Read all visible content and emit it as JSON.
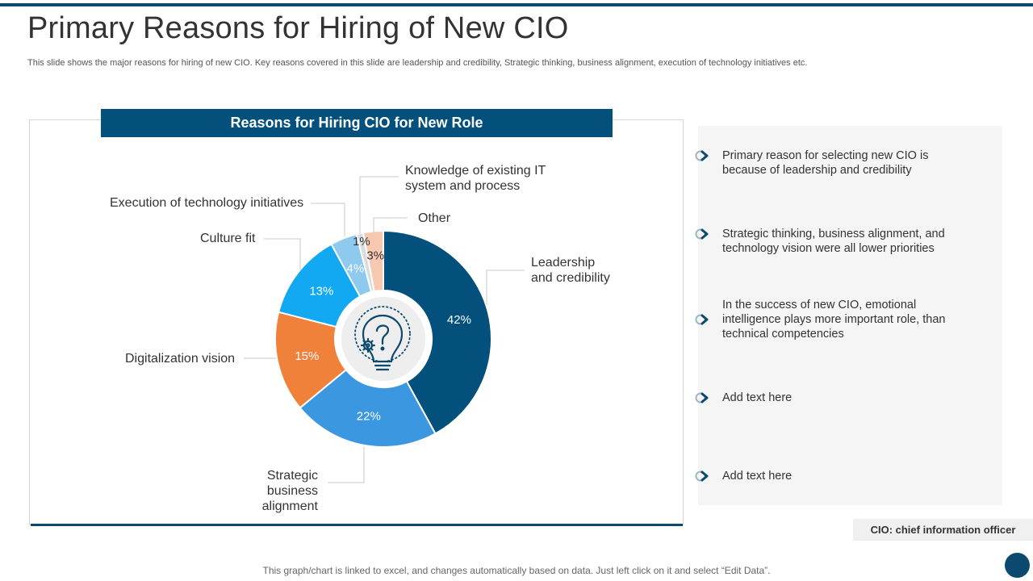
{
  "slide": {
    "title": "Primary Reasons for Hiring of New CIO",
    "subtitle": "This slide shows the major reasons for hiring of new CIO.  Key reasons covered in this slide are leadership and credibility, Strategic thinking, business alignment, execution of technology initiatives etc.",
    "footer_note": "This graph/chart is linked to excel,  and changes automatically based on data. Just left click on it and select “Edit Data”.",
    "abbreviation_note": "CIO: chief information officer"
  },
  "chart_header": "Reasons for Hiring CIO for New Role",
  "chart_data": {
    "type": "pie",
    "variant": "donut",
    "title": "Reasons for Hiring CIO for New Role",
    "center_icon": "lightbulb-question-gear-icon",
    "slices": [
      {
        "label": "Leadership\nand credibility",
        "value": 42,
        "value_label": "42%",
        "color": "#03507c"
      },
      {
        "label": "Strategic\nbusiness alignment",
        "value": 22,
        "value_label": "22%",
        "color": "#3a97e0"
      },
      {
        "label": "Digitalization vision",
        "value": 15,
        "value_label": "15%",
        "color": "#f0813b"
      },
      {
        "label": "Culture fit",
        "value": 13,
        "value_label": "13%",
        "color": "#12a8f2"
      },
      {
        "label": "Execution of technology  initiatives",
        "value": 4,
        "value_label": "4%",
        "color": "#8ec9ee"
      },
      {
        "label": "Knowledge of existing IT\nsystem and process",
        "value": 1,
        "value_label": "1%",
        "color": "#d9dde0"
      },
      {
        "label": "Other",
        "value": 3,
        "value_label": "3%",
        "color": "#f7c9b3"
      }
    ]
  },
  "key_points": [
    {
      "text": "Primary reason for selecting new CIO is because of leadership and credibility"
    },
    {
      "text": "Strategic thinking, business alignment, and technology vision were all lower priorities"
    },
    {
      "text": "In the success of new CIO, emotional intelligence plays more important role, than technical competencies"
    },
    {
      "text": "Add text here"
    },
    {
      "text": "Add text here"
    }
  ],
  "colors": {
    "accent_dark": "#03507c",
    "rule": "#0b4a6e",
    "panel_bg": "#f5f5f5",
    "bullet_ring": "#9fb4c2"
  }
}
